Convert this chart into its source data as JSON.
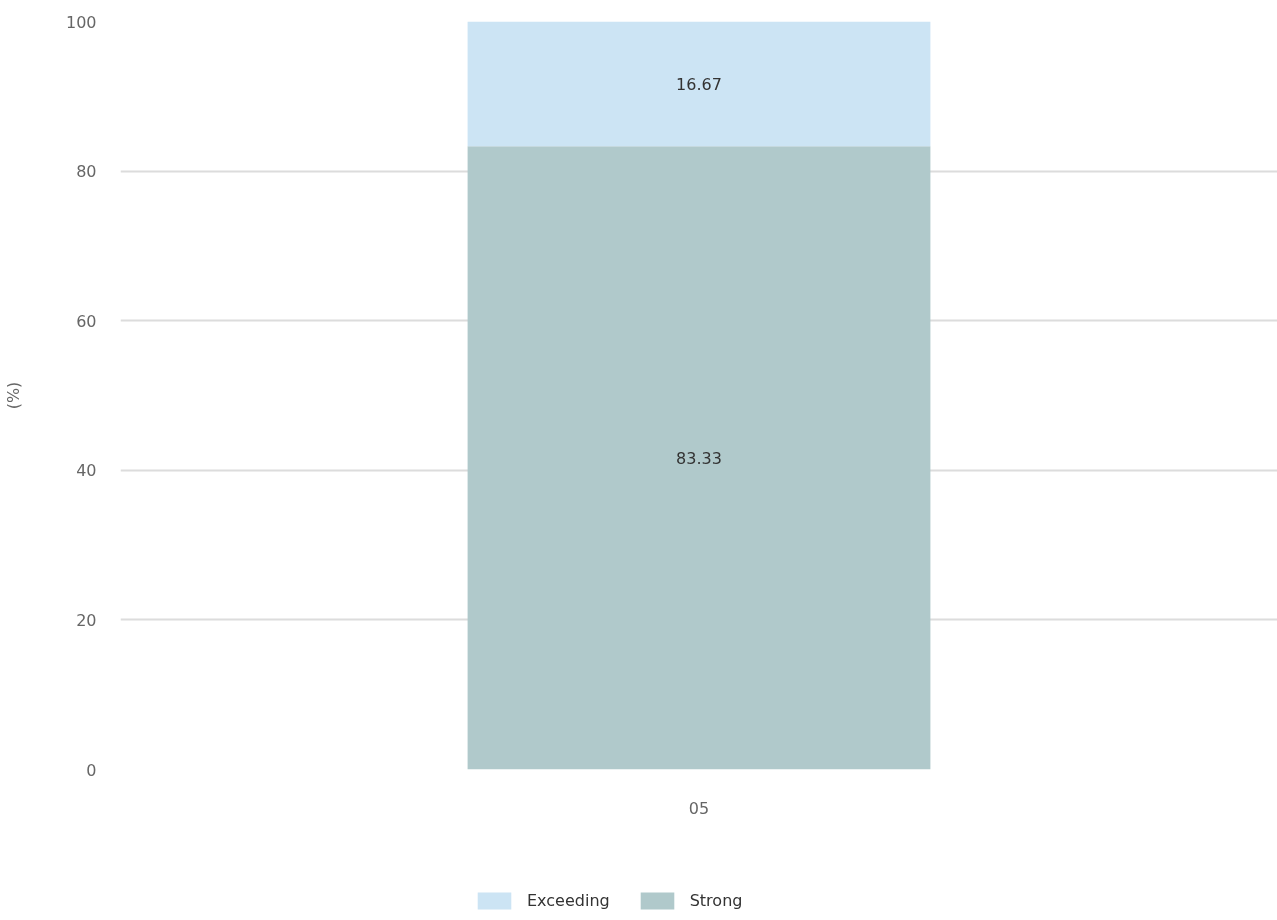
{
  "chart_data": {
    "type": "bar",
    "categories": [
      "05"
    ],
    "stacked": true,
    "series": [
      {
        "name": "Strong",
        "color": "#b0c9cb",
        "values": [
          83.33
        ]
      },
      {
        "name": "Exceeding",
        "color": "#cce4f4",
        "values": [
          16.67
        ]
      }
    ],
    "ylabel": "(%)",
    "ylim": [
      0,
      100
    ],
    "yticks": [
      0,
      20,
      40,
      60,
      80,
      100
    ],
    "grid": "y",
    "legend": "bottom",
    "data_labels": true
  }
}
